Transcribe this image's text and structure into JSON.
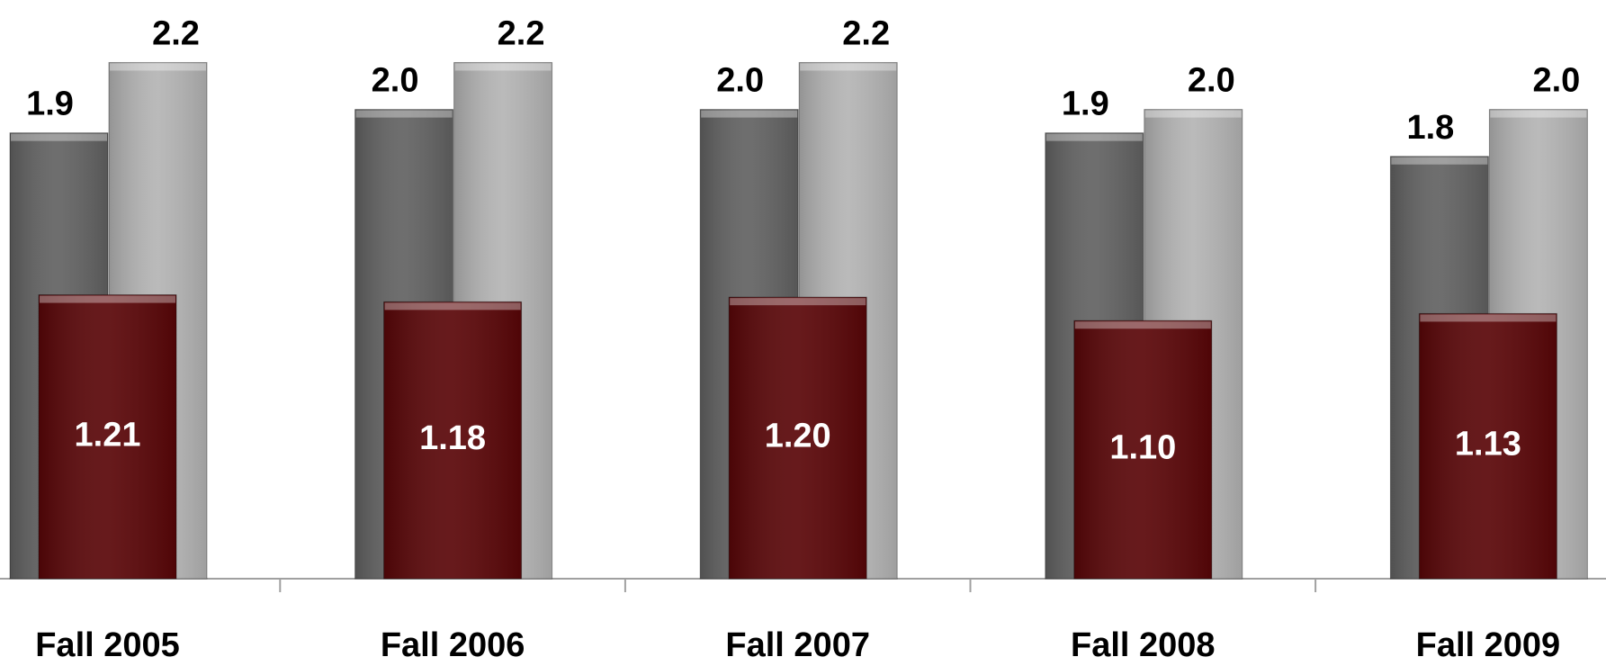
{
  "chart_data": {
    "type": "bar",
    "categories": [
      "Fall 2005",
      "Fall 2006",
      "Fall 2007",
      "Fall 2008",
      "Fall 2009"
    ],
    "series": [
      {
        "color": "#626262",
        "values": [
          1.9,
          2.0,
          2.0,
          1.9,
          1.8
        ],
        "value_labels": [
          "1.9",
          "2.0",
          "2.0",
          "1.9",
          "1.8"
        ]
      },
      {
        "color": "#b4b4b4",
        "values": [
          2.2,
          2.2,
          2.2,
          2.0,
          2.0
        ],
        "value_labels": [
          "2.2",
          "2.2",
          "2.2",
          "2.0",
          "2.0"
        ]
      },
      {
        "color": "#5a0608",
        "values": [
          1.21,
          1.18,
          1.2,
          1.1,
          1.13
        ],
        "value_labels": [
          "1.21",
          "1.18",
          "1.20",
          "1.10",
          "1.13"
        ]
      }
    ],
    "ylim": [
      0,
      2.5
    ]
  }
}
